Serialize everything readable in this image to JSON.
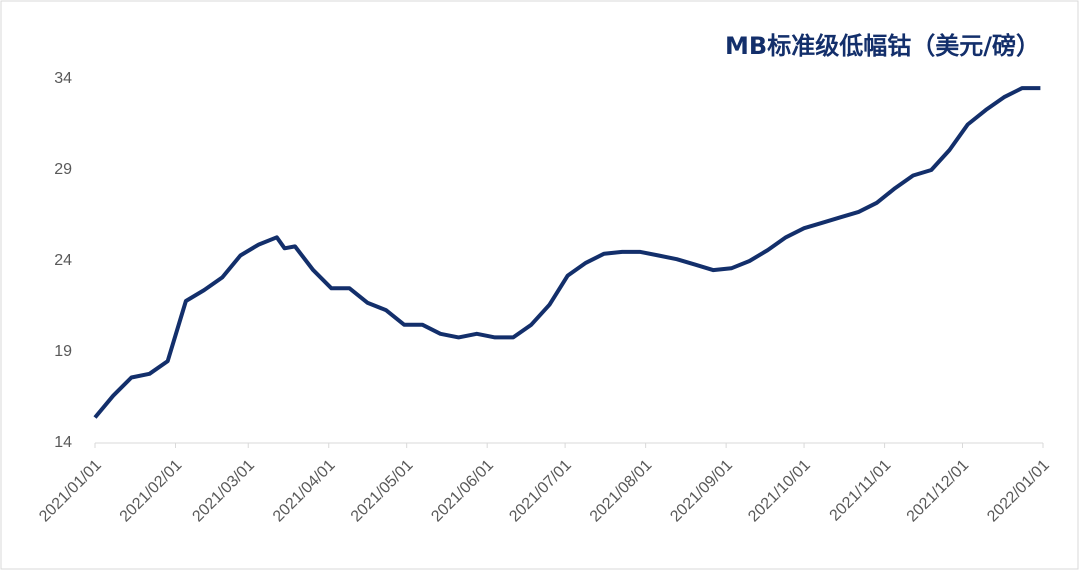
{
  "chart_data": {
    "type": "line",
    "title": "MB标准级低幅钴（美元/磅）",
    "x": [
      "2021/01/01",
      "2021/01/08",
      "2021/01/15",
      "2021/01/22",
      "2021/01/29",
      "2021/02/05",
      "2021/02/12",
      "2021/02/19",
      "2021/02/26",
      "2021/03/05",
      "2021/03/12",
      "2021/03/15",
      "2021/03/19",
      "2021/03/26",
      "2021/04/02",
      "2021/04/09",
      "2021/04/16",
      "2021/04/23",
      "2021/04/30",
      "2021/05/07",
      "2021/05/14",
      "2021/05/21",
      "2021/05/28",
      "2021/06/04",
      "2021/06/11",
      "2021/06/18",
      "2021/06/25",
      "2021/07/02",
      "2021/07/09",
      "2021/07/16",
      "2021/07/23",
      "2021/07/30",
      "2021/08/06",
      "2021/08/13",
      "2021/08/20",
      "2021/08/27",
      "2021/09/03",
      "2021/09/10",
      "2021/09/17",
      "2021/09/24",
      "2021/10/01",
      "2021/10/08",
      "2021/10/15",
      "2021/10/22",
      "2021/10/29",
      "2021/11/05",
      "2021/11/12",
      "2021/11/19",
      "2021/11/26",
      "2021/12/03",
      "2021/12/10",
      "2021/12/17",
      "2021/12/24",
      "2021/12/31"
    ],
    "series": [
      {
        "name": "MB标准级低幅钴",
        "color": "#132f6b",
        "values": [
          15.4,
          16.6,
          17.6,
          17.8,
          18.5,
          21.8,
          22.4,
          23.1,
          24.3,
          24.9,
          25.3,
          24.7,
          24.8,
          23.5,
          22.5,
          22.5,
          21.7,
          21.3,
          20.5,
          20.5,
          20.0,
          19.8,
          20.0,
          19.8,
          19.8,
          20.5,
          21.6,
          23.2,
          23.9,
          24.4,
          24.5,
          24.5,
          24.3,
          24.1,
          23.8,
          23.5,
          23.6,
          24.0,
          24.6,
          25.3,
          25.8,
          26.1,
          26.4,
          26.7,
          27.2,
          28.0,
          28.7,
          29.0,
          30.1,
          31.5,
          32.3,
          33.0,
          33.5,
          33.5
        ]
      }
    ],
    "xlim": [
      "2021/01/01",
      "2022/01/01"
    ],
    "xticks": [
      "2021/01/01",
      "2021/02/01",
      "2021/03/01",
      "2021/04/01",
      "2021/05/01",
      "2021/06/01",
      "2021/07/01",
      "2021/08/01",
      "2021/09/01",
      "2021/10/01",
      "2021/11/01",
      "2021/12/01",
      "2022/01/01"
    ],
    "ylim": [
      14,
      34
    ],
    "yticks": [
      14,
      19,
      24,
      29,
      34
    ],
    "grid": false
  }
}
